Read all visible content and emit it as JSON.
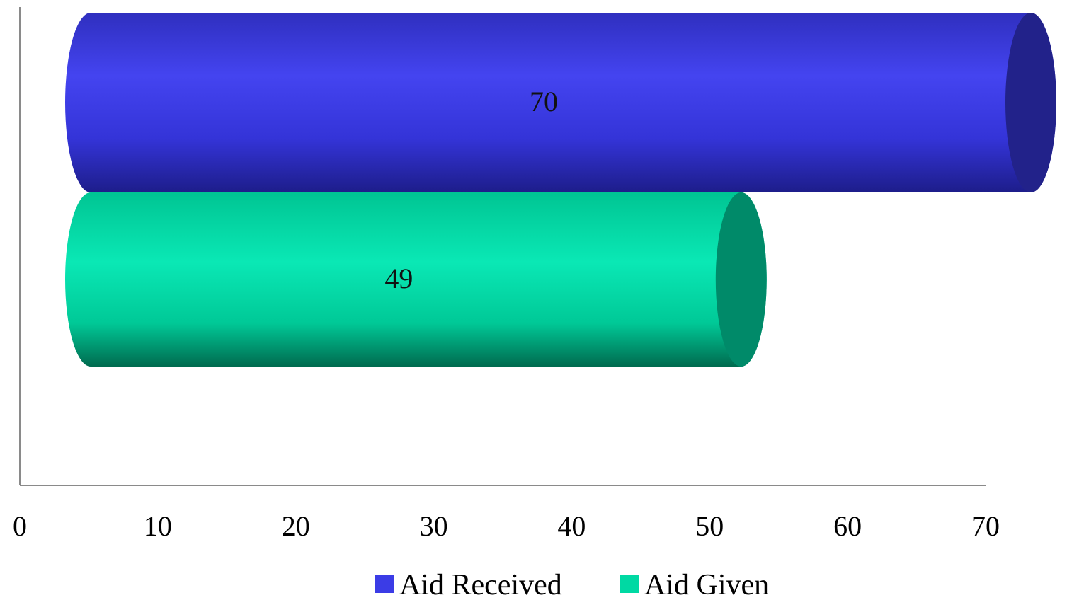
{
  "chart_data": {
    "type": "bar",
    "orientation": "horizontal",
    "style": "3d-cylinder",
    "categories": [
      ""
    ],
    "series": [
      {
        "name": "Aid Received",
        "values": [
          70
        ],
        "color": "#3b3ce6",
        "data_label": "70"
      },
      {
        "name": "Aid Given",
        "values": [
          49
        ],
        "color": "#00d9a3",
        "data_label": "49"
      }
    ],
    "xlim": [
      0,
      70
    ],
    "x_ticks": [
      "0",
      "10",
      "20",
      "30",
      "40",
      "50",
      "60",
      "70"
    ],
    "grid": false,
    "legend_position": "bottom"
  }
}
